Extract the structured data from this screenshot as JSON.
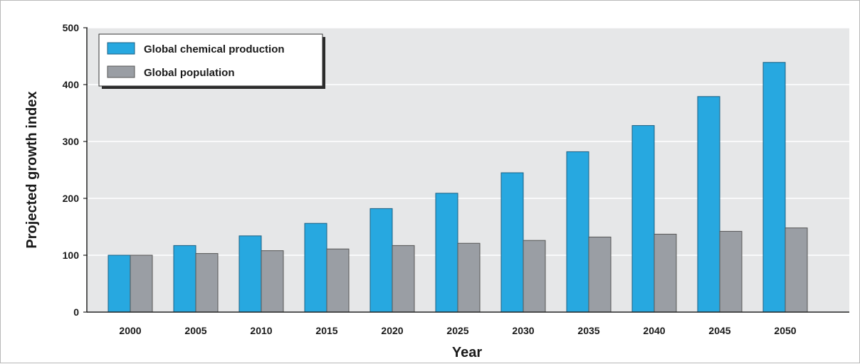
{
  "chart_data": {
    "type": "bar",
    "title": "",
    "xlabel": "Year",
    "ylabel": "Projected growth index",
    "categories": [
      "2000",
      "2005",
      "2010",
      "2015",
      "2020",
      "2025",
      "2030",
      "2035",
      "2040",
      "2045",
      "2050"
    ],
    "series": [
      {
        "name": "Global chemical production",
        "color": "#27a8e0",
        "values": [
          100,
          117,
          134,
          156,
          182,
          209,
          245,
          282,
          328,
          379,
          439
        ]
      },
      {
        "name": "Global population",
        "color": "#9a9ea4",
        "values": [
          100,
          103,
          108,
          111,
          117,
          121,
          126,
          132,
          137,
          142,
          148
        ]
      }
    ],
    "ylim": [
      0,
      500
    ],
    "yticks": [
      0,
      100,
      200,
      300,
      400,
      500
    ],
    "grid": true,
    "legend_position": "top-left",
    "plot_background": "#e6e7e8"
  }
}
